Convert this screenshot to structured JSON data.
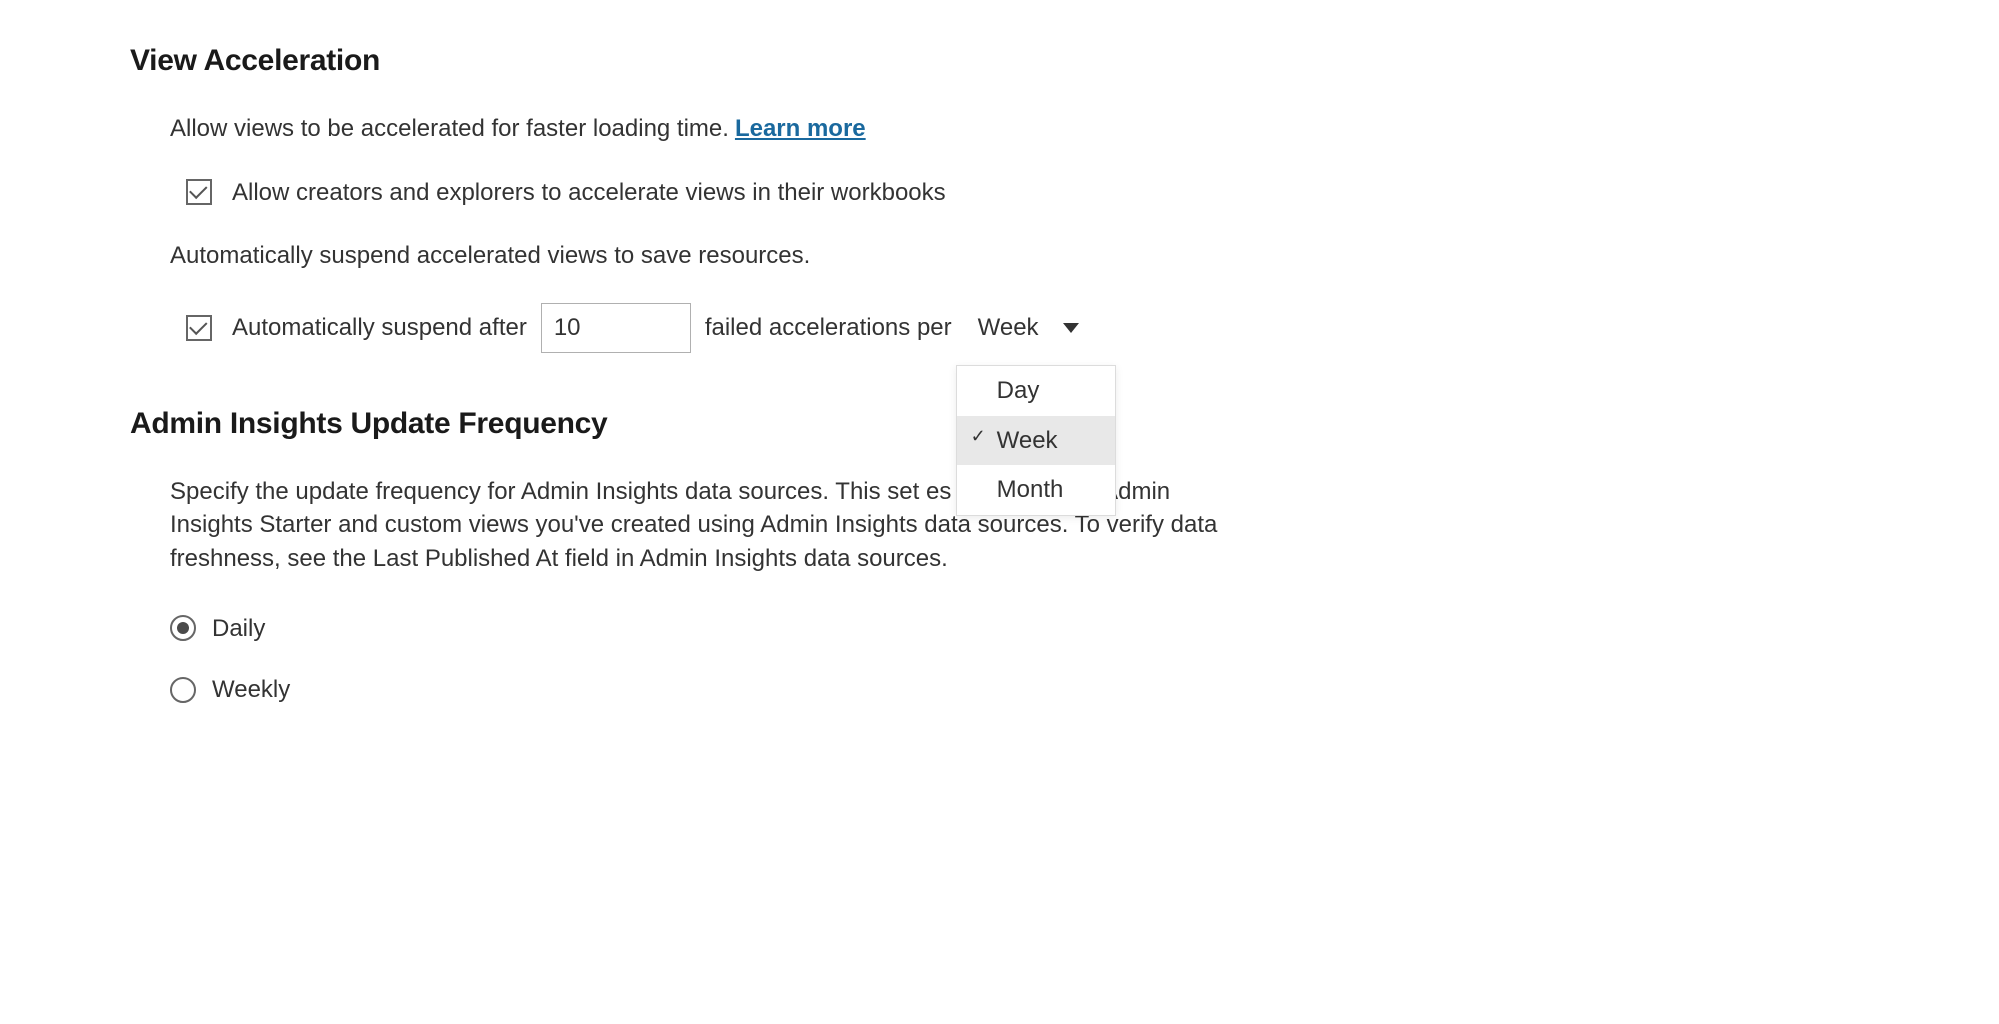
{
  "colors": {
    "text": "#333333",
    "heading": "#1a1a1a",
    "link": "#1a699e",
    "border": "#b0b0b0",
    "dropdown_selected_bg": "#e8e8e8",
    "checkbox_border": "#666666",
    "background": "#ffffff"
  },
  "view_acceleration": {
    "heading": "View Acceleration",
    "intro_text": "Allow views to be accelerated for faster loading time.  ",
    "learn_more_label": "Learn more",
    "allow_checkbox": {
      "checked": true,
      "label": "Allow creators and explorers to accelerate views in their workbooks"
    },
    "auto_suspend_text": "Automatically suspend accelerated views to save resources.",
    "auto_suspend_checkbox": {
      "checked": true,
      "label_before": "Automatically suspend after",
      "value": "10",
      "label_after": "failed accelerations per",
      "period_selected": "Week",
      "period_options": [
        "Day",
        "Week",
        "Month"
      ]
    }
  },
  "admin_insights": {
    "heading": "Admin Insights Update Frequency",
    "description": "Specify the update frequency for Admin Insights data sources. This set                es to data in the Admin Insights Starter and custom views you've created using Admin Insights data sources. To verify data freshness, see the Last Published At field in Admin Insights data sources.",
    "options": [
      {
        "label": "Daily",
        "checked": true
      },
      {
        "label": "Weekly",
        "checked": false
      }
    ]
  }
}
